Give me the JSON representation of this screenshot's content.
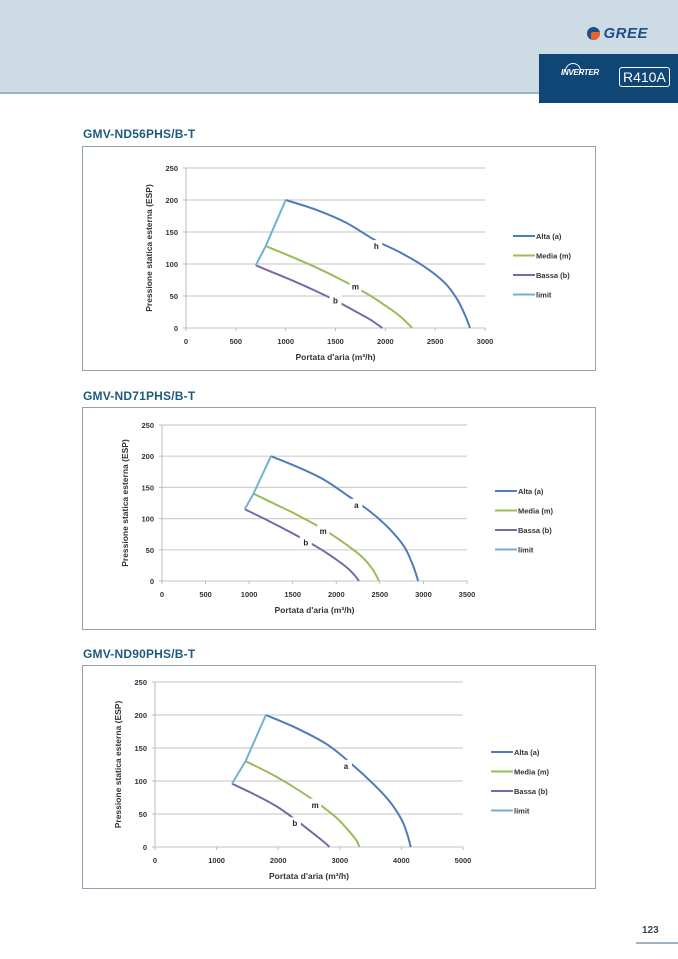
{
  "header": {
    "brand": "GREE",
    "badge_inverter": "INVERTER",
    "badge_refrigerant": "R410A"
  },
  "page_number": "123",
  "colors": {
    "alta": "#4f7bb9",
    "media": "#9bbb59",
    "bassa": "#7d66a6",
    "limit": "#6fb3d1",
    "title": "#1c5a7e"
  },
  "chart_data": [
    {
      "type": "line",
      "title": "GMV-ND56PHS/B-T",
      "xlabel": "Portata d'aria (m³/h)",
      "ylabel": "Pressione statica esterna (ESP)",
      "xlim": [
        0,
        3000
      ],
      "ylim": [
        0,
        250
      ],
      "xticks": [
        "0",
        "500",
        "1000",
        "1500",
        "2000",
        "2500",
        "3000"
      ],
      "yticks": [
        "0",
        "50",
        "100",
        "150",
        "200",
        "250"
      ],
      "grid": true,
      "legend": "right",
      "series": [
        {
          "name": "Alta (a)",
          "key": "alta",
          "label": "h",
          "label_at": [
            1910,
            128
          ],
          "x": [
            1000,
            1300,
            1600,
            1900,
            2150,
            2400,
            2600,
            2720,
            2800,
            2850
          ],
          "y": [
            200,
            185,
            165,
            137,
            118,
            95,
            70,
            45,
            20,
            0
          ]
        },
        {
          "name": "Media (m)",
          "key": "media",
          "label": "m",
          "label_at": [
            1700,
            65
          ],
          "x": [
            800,
            1050,
            1300,
            1550,
            1800,
            2000,
            2150,
            2270
          ],
          "y": [
            128,
            112,
            95,
            76,
            55,
            35,
            18,
            0
          ]
        },
        {
          "name": "Bassa (b)",
          "key": "bassa",
          "label": "b",
          "label_at": [
            1500,
            43
          ],
          "x": [
            700,
            900,
            1100,
            1300,
            1500,
            1700,
            1850,
            1970
          ],
          "y": [
            98,
            85,
            72,
            58,
            43,
            26,
            13,
            0
          ]
        },
        {
          "name": "limit",
          "key": "limit",
          "x": [
            700,
            800,
            1000
          ],
          "y": [
            98,
            128,
            200
          ]
        }
      ]
    },
    {
      "type": "line",
      "title": "GMV-ND71PHS/B-T",
      "xlabel": "Portata d'aria (m³/h)",
      "ylabel": "Pressione statica esterna (ESP)",
      "xlim": [
        0,
        3500
      ],
      "ylim": [
        0,
        250
      ],
      "xticks": [
        "0",
        "500",
        "1000",
        "1500",
        "2000",
        "2500",
        "3000",
        "3500"
      ],
      "yticks": [
        "0",
        "50",
        "100",
        "150",
        "200",
        "250"
      ],
      "grid": true,
      "legend": "right",
      "series": [
        {
          "name": "Alta (a)",
          "key": "alta",
          "label": "a",
          "label_at": [
            2230,
            122
          ],
          "x": [
            1250,
            1550,
            1850,
            2150,
            2400,
            2600,
            2780,
            2880,
            2940
          ],
          "y": [
            200,
            183,
            163,
            135,
            110,
            85,
            55,
            25,
            0
          ]
        },
        {
          "name": "Media (m)",
          "key": "media",
          "label": "m",
          "label_at": [
            1850,
            80
          ],
          "x": [
            1050,
            1300,
            1550,
            1850,
            2100,
            2300,
            2420,
            2490
          ],
          "y": [
            140,
            123,
            106,
            83,
            60,
            38,
            18,
            0
          ]
        },
        {
          "name": "Bassa (b)",
          "key": "bassa",
          "label": "b",
          "label_at": [
            1650,
            62
          ],
          "x": [
            950,
            1200,
            1450,
            1700,
            1900,
            2100,
            2200,
            2260
          ],
          "y": [
            115,
            98,
            80,
            61,
            44,
            24,
            11,
            0
          ]
        },
        {
          "name": "limit",
          "key": "limit",
          "x": [
            950,
            1050,
            1250
          ],
          "y": [
            115,
            140,
            200
          ]
        }
      ]
    },
    {
      "type": "line",
      "title": "GMV-ND90PHS/B-T",
      "xlabel": "Portata d'aria (m³/h)",
      "ylabel": "Pressione statica esterna (ESP)",
      "xlim": [
        0,
        5000
      ],
      "ylim": [
        0,
        250
      ],
      "xticks": [
        "0",
        "1000",
        "2000",
        "3000",
        "4000",
        "5000"
      ],
      "yticks": [
        "0",
        "50",
        "100",
        "150",
        "200",
        "250"
      ],
      "grid": true,
      "legend": "right",
      "series": [
        {
          "name": "Alta (a)",
          "key": "alta",
          "label": "a",
          "label_at": [
            3100,
            123
          ],
          "x": [
            1800,
            2300,
            2800,
            3200,
            3550,
            3800,
            4000,
            4100,
            4150
          ],
          "y": [
            200,
            180,
            155,
            125,
            95,
            70,
            42,
            18,
            0
          ]
        },
        {
          "name": "Media (m)",
          "key": "media",
          "label": "m",
          "label_at": [
            2600,
            64
          ],
          "x": [
            1470,
            1900,
            2300,
            2650,
            2950,
            3150,
            3270,
            3320
          ],
          "y": [
            130,
            110,
            88,
            66,
            44,
            24,
            10,
            0
          ]
        },
        {
          "name": "Bassa (b)",
          "key": "bassa",
          "label": "b",
          "label_at": [
            2270,
            36
          ],
          "x": [
            1250,
            1650,
            2000,
            2300,
            2550,
            2700,
            2800,
            2830
          ],
          "y": [
            96,
            78,
            60,
            40,
            22,
            11,
            3,
            0
          ]
        },
        {
          "name": "limit",
          "key": "limit",
          "x": [
            1250,
            1470,
            1800
          ],
          "y": [
            96,
            130,
            200
          ]
        }
      ]
    }
  ]
}
